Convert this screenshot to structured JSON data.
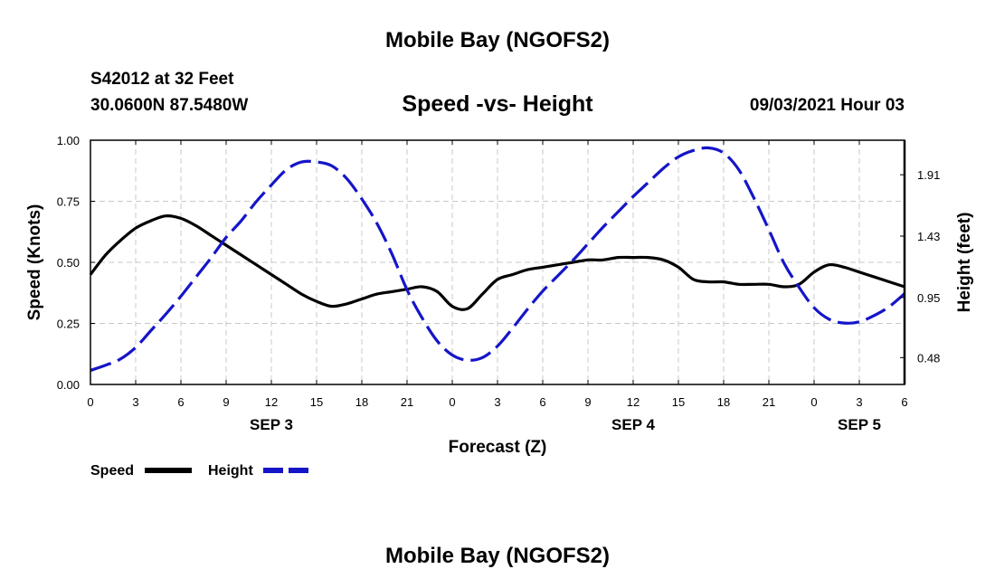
{
  "page": {
    "title": "Mobile Bay (NGOFS2)",
    "footer_title": "Mobile Bay (NGOFS2)",
    "station": "S42012 at 32 Feet",
    "coordinates": "30.0600N  87.5480W",
    "subtitle": "Speed -vs- Height",
    "datetime": "09/03/2021 Hour 03"
  },
  "chart_data": {
    "type": "line",
    "title": "Speed -vs- Height",
    "xlabel": "Forecast (Z)",
    "ylabel_left": "Speed (Knots)",
    "ylabel_right": "Height (feet)",
    "x": [
      0,
      1,
      2,
      3,
      4,
      5,
      6,
      7,
      8,
      9,
      10,
      11,
      12,
      13,
      14,
      15,
      16,
      17,
      18,
      19,
      20,
      21,
      22,
      23,
      24,
      25,
      26,
      27,
      28,
      29,
      30,
      31,
      32,
      33,
      34,
      35,
      36,
      37,
      38,
      39,
      40,
      41,
      42,
      43,
      44,
      45,
      46,
      47,
      48,
      49,
      50,
      51,
      52,
      53,
      54
    ],
    "xlim": [
      0,
      54
    ],
    "x_ticks": [
      0,
      3,
      6,
      9,
      12,
      15,
      18,
      21,
      24,
      27,
      30,
      33,
      36,
      39,
      42,
      45,
      48,
      51,
      54
    ],
    "x_tick_labels": [
      "0",
      "3",
      "6",
      "9",
      "12",
      "15",
      "18",
      "21",
      "0",
      "3",
      "6",
      "9",
      "12",
      "15",
      "18",
      "21",
      "0",
      "3",
      "6"
    ],
    "day_labels": [
      {
        "label": "SEP 3",
        "x": 12
      },
      {
        "label": "SEP 4",
        "x": 36
      },
      {
        "label": "SEP 5",
        "x": 51
      }
    ],
    "y_left": {
      "lim": [
        0,
        1.0
      ],
      "ticks": [
        0,
        0.25,
        0.5,
        0.75,
        1.0
      ],
      "tick_labels": [
        "0.00",
        "0.25",
        "0.50",
        "0.75",
        "1.00"
      ]
    },
    "y_right": {
      "lim": [
        0.27,
        2.18
      ],
      "ticks": [
        0.48,
        0.95,
        1.43,
        1.91
      ],
      "tick_labels": [
        "0.48",
        "0.95",
        "1.43",
        "1.91"
      ]
    },
    "grid": true,
    "legend_position": "bottom-left",
    "series": [
      {
        "name": "Speed",
        "axis": "left",
        "color": "#000000",
        "style": "solid",
        "values": [
          0.45,
          0.53,
          0.59,
          0.64,
          0.67,
          0.69,
          0.68,
          0.65,
          0.61,
          0.57,
          0.53,
          0.49,
          0.45,
          0.41,
          0.37,
          0.34,
          0.32,
          0.33,
          0.35,
          0.37,
          0.38,
          0.39,
          0.4,
          0.38,
          0.32,
          0.31,
          0.37,
          0.43,
          0.45,
          0.47,
          0.48,
          0.49,
          0.5,
          0.51,
          0.51,
          0.52,
          0.52,
          0.52,
          0.51,
          0.48,
          0.43,
          0.42,
          0.42,
          0.41,
          0.41,
          0.41,
          0.4,
          0.41,
          0.46,
          0.49,
          0.48,
          0.46,
          0.44,
          0.42,
          0.4
        ]
      },
      {
        "name": "Height",
        "axis": "right",
        "color": "#1515c8",
        "style": "dashed",
        "values": [
          0.38,
          0.42,
          0.47,
          0.56,
          0.69,
          0.82,
          0.96,
          1.11,
          1.26,
          1.42,
          1.55,
          1.7,
          1.83,
          1.95,
          2.01,
          2.01,
          1.98,
          1.88,
          1.72,
          1.53,
          1.29,
          1.01,
          0.79,
          0.61,
          0.5,
          0.46,
          0.48,
          0.57,
          0.71,
          0.86,
          1.0,
          1.12,
          1.24,
          1.37,
          1.5,
          1.62,
          1.74,
          1.85,
          1.96,
          2.05,
          2.1,
          2.12,
          2.08,
          1.95,
          1.73,
          1.48,
          1.22,
          1.03,
          0.87,
          0.78,
          0.75,
          0.76,
          0.81,
          0.88,
          0.98
        ]
      }
    ]
  }
}
